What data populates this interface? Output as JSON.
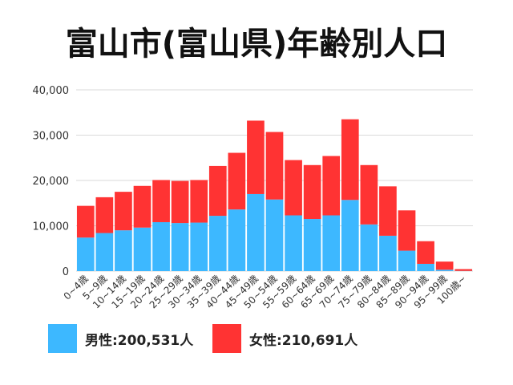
{
  "colors": {
    "male": "#3db8ff",
    "female": "#ff3333",
    "grid": "#d9d9d9",
    "text": "#333333"
  },
  "legend": {
    "male_label": "男性:200,531人",
    "female_label": "女性:210,691人"
  },
  "chart_data": {
    "type": "bar",
    "stacked": true,
    "title": "富山市(富山県)年齢別人口",
    "xlabel": "",
    "ylabel": "",
    "ylim": [
      0,
      40000
    ],
    "yticks": [
      "0",
      "10,000",
      "20,000",
      "30,000",
      "40,000"
    ],
    "ytick_values": [
      0,
      10000,
      20000,
      30000,
      40000
    ],
    "grid": true,
    "legend_position": "bottom",
    "categories": [
      "0~4歳",
      "5~9歳",
      "10~14歳",
      "15~19歳",
      "20~24歳",
      "25~29歳",
      "30~34歳",
      "35~39歳",
      "40~44歳",
      "45~49歳",
      "50~54歳",
      "55~59歳",
      "60~64歳",
      "65~69歳",
      "70~74歳",
      "75~79歳",
      "80~84歳",
      "85~89歳",
      "90~94歳",
      "95~99歳",
      "100歳~"
    ],
    "series": [
      {
        "name": "男性",
        "values": [
          7400,
          8400,
          9000,
          9600,
          10800,
          10600,
          10700,
          12200,
          13600,
          17000,
          15800,
          12300,
          11500,
          12300,
          15700,
          10300,
          7800,
          4500,
          1600,
          300,
          40
        ]
      },
      {
        "name": "女性",
        "values": [
          7000,
          7900,
          8500,
          9200,
          9300,
          9300,
          9400,
          11000,
          12500,
          16200,
          14900,
          12200,
          11900,
          13100,
          17800,
          13100,
          10900,
          8900,
          5000,
          1800,
          400
        ]
      }
    ]
  }
}
